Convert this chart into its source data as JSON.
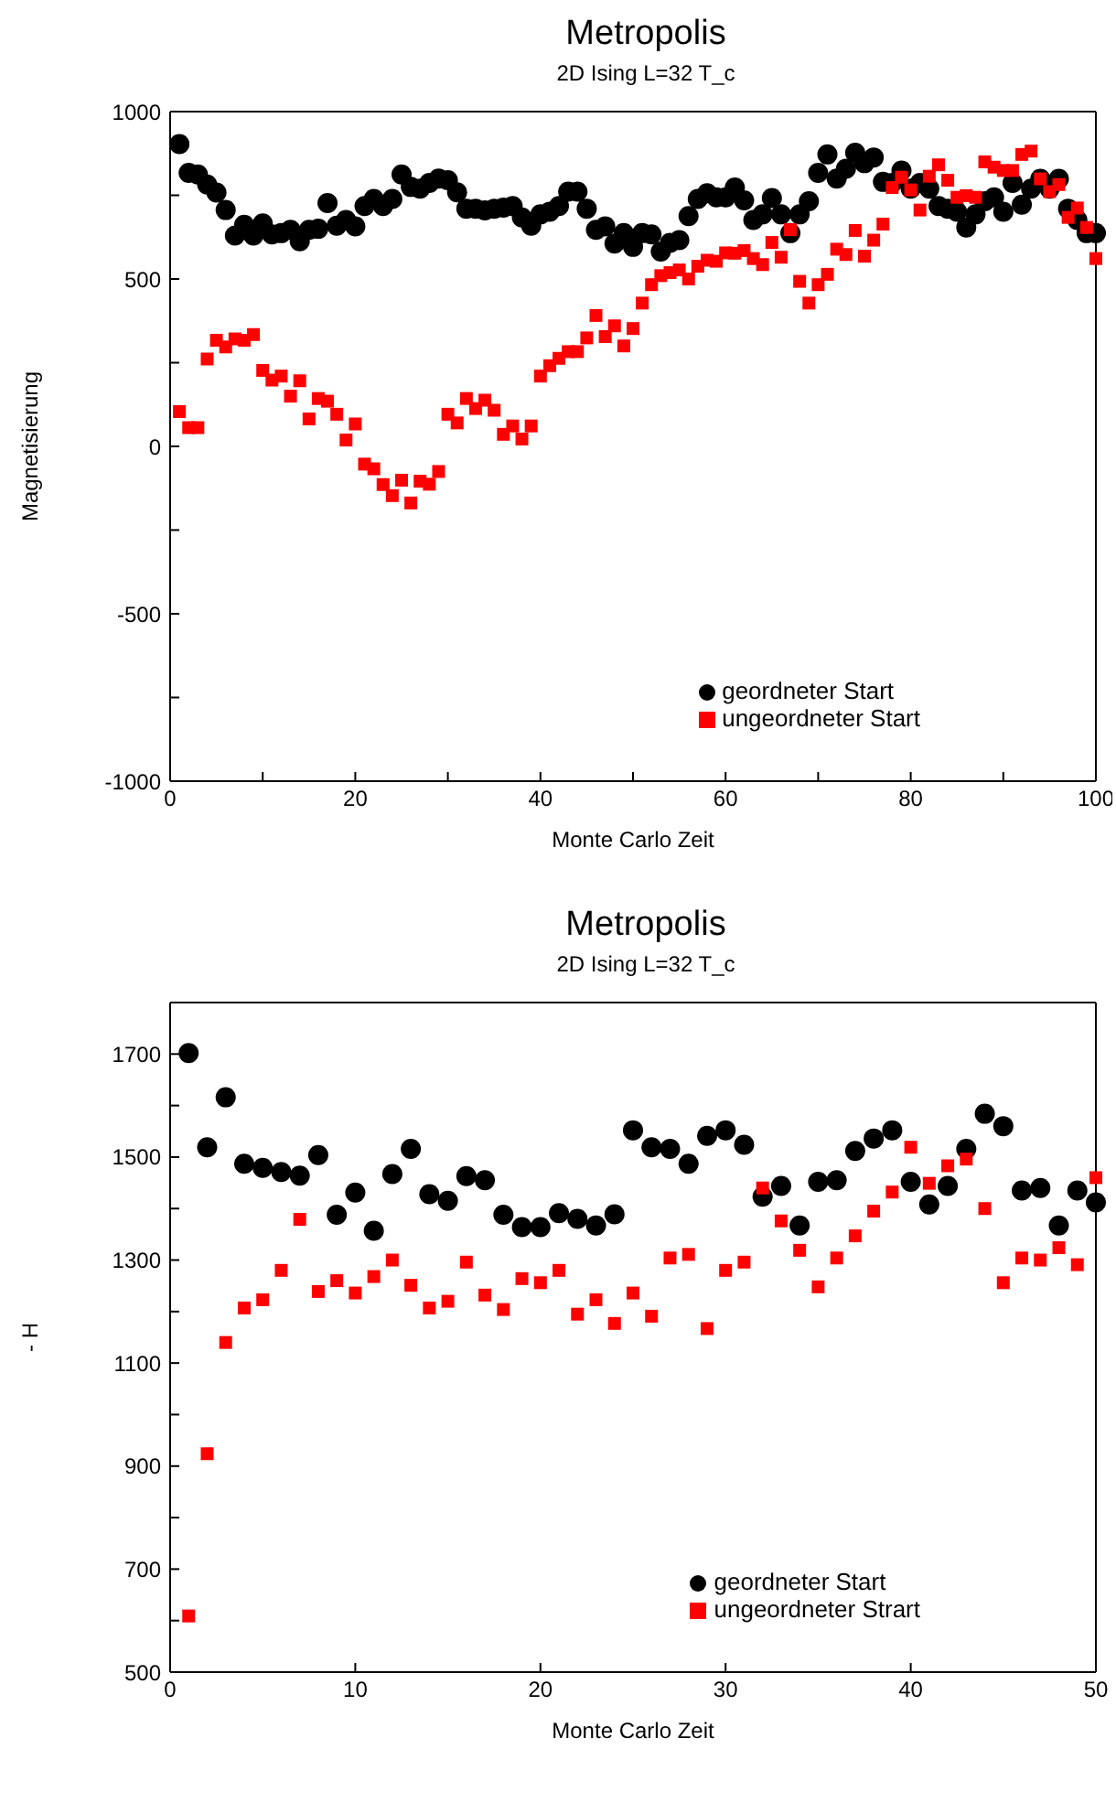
{
  "chart_data": [
    {
      "type": "scatter",
      "title": "Metropolis",
      "subtitle": "2D Ising L=32  T_c",
      "xlabel": "Monte Carlo Zeit",
      "ylabel": "Magnetisierung",
      "x": [
        1,
        2,
        3,
        4,
        5,
        6,
        7,
        8,
        9,
        10,
        11,
        12,
        13,
        14,
        15,
        16,
        17,
        18,
        19,
        20,
        21,
        22,
        23,
        24,
        25,
        26,
        27,
        28,
        29,
        30,
        31,
        32,
        33,
        34,
        35,
        36,
        37,
        38,
        39,
        40,
        41,
        42,
        43,
        44,
        45,
        46,
        47,
        48,
        49,
        50,
        51,
        52,
        53,
        54,
        55,
        56,
        57,
        58,
        59,
        60,
        61,
        62,
        63,
        64,
        65,
        66,
        67,
        68,
        69,
        70,
        71,
        72,
        73,
        74,
        75,
        76,
        77,
        78,
        79,
        80,
        81,
        82,
        83,
        84,
        85,
        86,
        87,
        88,
        89,
        90,
        91,
        92,
        93,
        94,
        95,
        96,
        97,
        98,
        99,
        100
      ],
      "xlim": [
        0,
        100
      ],
      "xticks": [
        0,
        {
          "value": 10,
          "label": null
        },
        20,
        {
          "value": 30,
          "label": null
        },
        40,
        {
          "value": 50,
          "label": null
        },
        60,
        {
          "value": 70,
          "label": null
        },
        80,
        {
          "value": 90,
          "label": null
        },
        100
      ],
      "ylim": [
        -1000,
        1000
      ],
      "yticks": [
        -1000,
        {
          "value": -750,
          "label": null
        },
        -500,
        {
          "value": -250,
          "label": null
        },
        0,
        {
          "value": 250,
          "label": null
        },
        500,
        {
          "value": 750,
          "label": null
        },
        1000
      ],
      "legend": "bottom right",
      "grid": false,
      "series": [
        {
          "name": "geordneter Start",
          "color": "#000000",
          "marker": "circle",
          "values": [
            903,
            817,
            812,
            782,
            758,
            706,
            630,
            662,
            630,
            666,
            633,
            637,
            647,
            613,
            647,
            650,
            727,
            659,
            676,
            657,
            718,
            739,
            718,
            739,
            812,
            775,
            770,
            787,
            800,
            795,
            759,
            710,
            710,
            705,
            710,
            713,
            718,
            684,
            659,
            693,
            701,
            718,
            761,
            761,
            710,
            647,
            657,
            606,
            637,
            596,
            637,
            633,
            582,
            608,
            616,
            688,
            739,
            756,
            744,
            744,
            773,
            735,
            676,
            693,
            742,
            693,
            637,
            693,
            732,
            817,
            872,
            800,
            829,
            877,
            846,
            863,
            790,
            787,
            824,
            770,
            787,
            770,
            718,
            710,
            701,
            654,
            693,
            732,
            744,
            701,
            787,
            722,
            770,
            799,
            770,
            799,
            710,
            676,
            637,
            637
          ]
        },
        {
          "name": "ungeordneter Start",
          "color": "#ff0000",
          "marker": "square",
          "values": [
            104,
            56,
            56,
            261,
            317,
            297,
            321,
            317,
            334,
            227,
            198,
            210,
            150,
            196,
            82,
            143,
            135,
            96,
            19,
            67,
            -53,
            -67,
            -114,
            -147,
            -101,
            -169,
            -104,
            -113,
            -75,
            96,
            70,
            143,
            113,
            138,
            108,
            36,
            61,
            22,
            61,
            210,
            241,
            263,
            283,
            283,
            324,
            391,
            328,
            360,
            300,
            352,
            428,
            483,
            510,
            519,
            527,
            500,
            538,
            556,
            553,
            578,
            577,
            585,
            561,
            543,
            609,
            565,
            647,
            493,
            428,
            483,
            514,
            589,
            573,
            645,
            568,
            616,
            664,
            773,
            804,
            766,
            706,
            807,
            841,
            795,
            744,
            749,
            744,
            850,
            834,
            824,
            824,
            872,
            882,
            799,
            761,
            782,
            684,
            712,
            654,
            561
          ]
        }
      ]
    },
    {
      "type": "scatter",
      "title": "Metropolis",
      "subtitle": "2D Ising  L=32  T_c",
      "xlabel": "Monte Carlo Zeit",
      "ylabel": "- H",
      "x": [
        1,
        2,
        3,
        4,
        5,
        6,
        7,
        8,
        9,
        10,
        11,
        12,
        13,
        14,
        15,
        16,
        17,
        18,
        19,
        20,
        21,
        22,
        23,
        24,
        25,
        26,
        27,
        28,
        29,
        30,
        31,
        32,
        33,
        34,
        35,
        36,
        37,
        38,
        39,
        40,
        41,
        42,
        43,
        44,
        45,
        46,
        47,
        48,
        49,
        50
      ],
      "xlim": [
        0,
        50
      ],
      "xticks": [
        0,
        10,
        20,
        30,
        40,
        50
      ],
      "ylim": [
        500,
        1800
      ],
      "yticks": [
        500,
        {
          "value": 600,
          "label": null
        },
        700,
        {
          "value": 800,
          "label": null
        },
        900,
        {
          "value": 1000,
          "label": null
        },
        1100,
        {
          "value": 1200,
          "label": null
        },
        1300,
        {
          "value": 1400,
          "label": null
        },
        1500,
        {
          "value": 1600,
          "label": null
        },
        1700
      ],
      "legend": "bottom right",
      "grid": false,
      "series": [
        {
          "name": "geordneter Start",
          "color": "#000000",
          "marker": "circle",
          "values": [
            1702,
            1519,
            1616,
            1487,
            1479,
            1471,
            1464,
            1504,
            1388,
            1431,
            1357,
            1467,
            1516,
            1428,
            1415,
            1463,
            1455,
            1388,
            1364,
            1364,
            1391,
            1380,
            1367,
            1389,
            1552,
            1519,
            1516,
            1487,
            1541,
            1552,
            1524,
            1423,
            1444,
            1367,
            1452,
            1455,
            1512,
            1536,
            1552,
            1452,
            1408,
            1444,
            1516,
            1584,
            1560,
            1435,
            1440,
            1367,
            1435,
            1412
          ]
        },
        {
          "name": "ungeordneter Strart",
          "color": "#ff0000",
          "marker": "square",
          "values": [
            609,
            924,
            1140,
            1207,
            1223,
            1280,
            1379,
            1239,
            1260,
            1236,
            1268,
            1300,
            1251,
            1207,
            1220,
            1296,
            1232,
            1204,
            1264,
            1256,
            1280,
            1195,
            1223,
            1177,
            1236,
            1191,
            1304,
            1311,
            1167,
            1280,
            1296,
            1440,
            1376,
            1319,
            1248,
            1304,
            1347,
            1395,
            1432,
            1519,
            1449,
            1483,
            1496,
            1400,
            1256,
            1304,
            1300,
            1324,
            1291,
            1460
          ]
        }
      ]
    }
  ]
}
